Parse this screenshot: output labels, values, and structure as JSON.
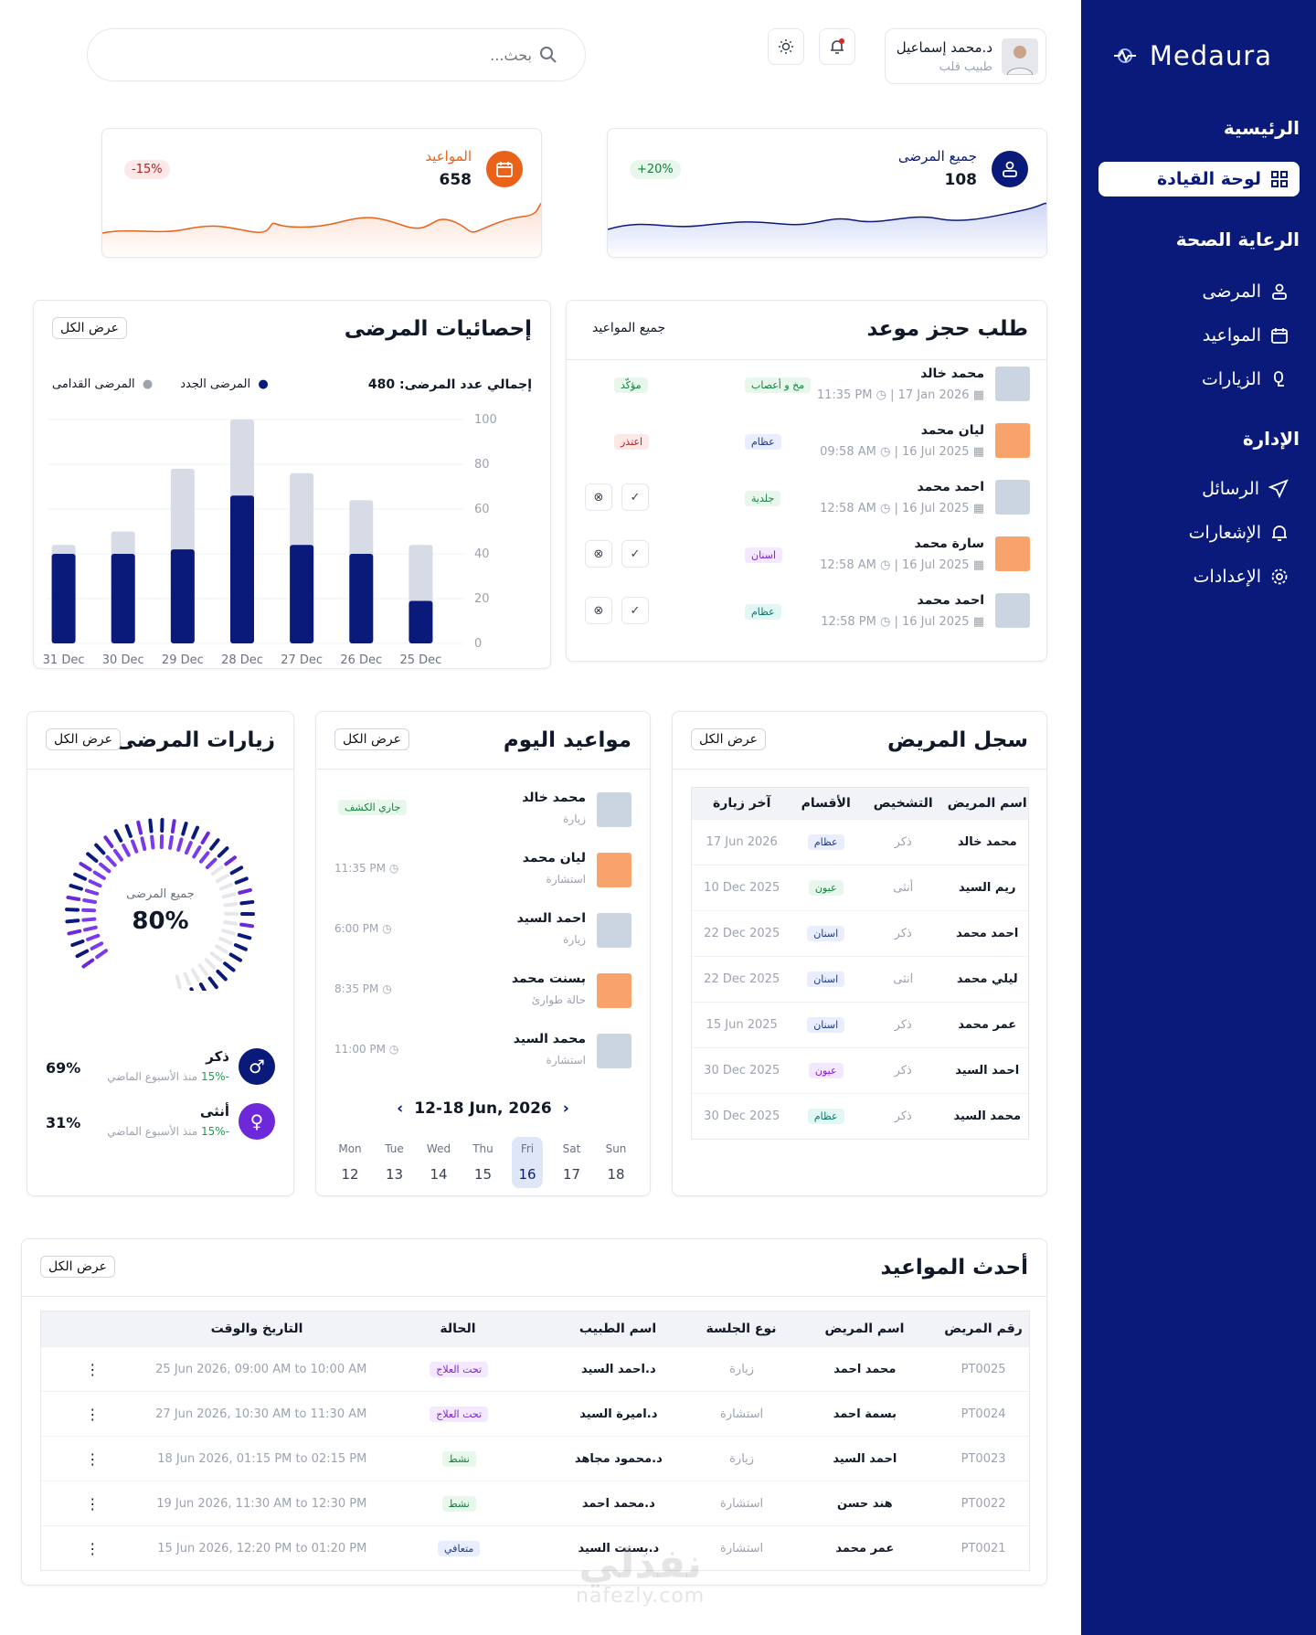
{
  "header": {
    "search_placeholder": "بحث...",
    "user_name": "د.محمد إسماعيل",
    "user_role": "طبيب قلب"
  },
  "sidebar": {
    "brand": "Medaura",
    "sections": [
      {
        "label": "الرئيسية",
        "items": [
          {
            "label": "لوحة القيادة",
            "icon": "dashboard-icon",
            "active": true
          }
        ]
      },
      {
        "label": "الرعاية الصحة",
        "items": [
          {
            "label": "المرضى",
            "icon": "patients-icon"
          },
          {
            "label": "المواعيد",
            "icon": "calendar-icon"
          },
          {
            "label": "الزيارات",
            "icon": "visits-icon"
          }
        ]
      },
      {
        "label": "الإدارة",
        "items": [
          {
            "label": "الرسائل",
            "icon": "send-icon"
          },
          {
            "label": "الإشعارات",
            "icon": "bell-icon"
          },
          {
            "label": "الإعدادات",
            "icon": "gear-icon"
          }
        ]
      }
    ]
  },
  "stats": {
    "patients": {
      "label": "جميع المرضى",
      "value": "108",
      "change": "+20%"
    },
    "appointments": {
      "label": "المواعيد",
      "value": "658",
      "change": "-15%"
    }
  },
  "patient_stats": {
    "title": "إحصائيات المرضى",
    "view_all": "عرض الكل",
    "total_label": "إجمالي عدد المرضى: 480",
    "legend_new": "المرضى الجدد",
    "legend_old": "المرضى القدامى"
  },
  "chart_data": {
    "type": "bar",
    "categories": [
      "31 Dec",
      "30 Dec",
      "29 Dec",
      "28 Dec",
      "27 Dec",
      "26 Dec",
      "25 Dec"
    ],
    "series": [
      {
        "name": "المرضى الجدد",
        "values": [
          40,
          40,
          42,
          66,
          44,
          40,
          19
        ],
        "color": "#0a1a7a"
      },
      {
        "name": "المرضى القدامى",
        "values": [
          44,
          50,
          78,
          100,
          76,
          64,
          44
        ],
        "color": "#d6dbe6"
      }
    ],
    "ylim": [
      0,
      100
    ],
    "yticks": [
      0,
      20,
      40,
      60,
      80,
      100
    ]
  },
  "booking": {
    "title": "طلب حجز موعد",
    "filter": "جميع المواعيد",
    "rows": [
      {
        "name": "محمد خالد",
        "date": "17 Jan 2026",
        "time": "11:35 PM",
        "dept": "مخ و أعصاب",
        "status": "مؤكّد",
        "status_kind": "green",
        "dept_kind": "green",
        "actions": false
      },
      {
        "name": "ليان محمد",
        "date": "16 Jul 2025",
        "time": "09:58 AM",
        "dept": "عظام",
        "status": "اعتذر",
        "status_kind": "red",
        "dept_kind": "blue",
        "actions": false
      },
      {
        "name": "احمد محمد",
        "date": "16 Jul 2025",
        "time": "12:58 AM",
        "dept": "جلدية",
        "status": "",
        "status_kind": "",
        "dept_kind": "green",
        "actions": true
      },
      {
        "name": "سارة محمد",
        "date": "16 Jul 2025",
        "time": "12:58 AM",
        "dept": "اسنان",
        "status": "",
        "status_kind": "",
        "dept_kind": "purple",
        "actions": true
      },
      {
        "name": "احمد محمد",
        "date": "16 Jul 2025",
        "time": "12:58 PM",
        "dept": "عظام",
        "status": "",
        "status_kind": "",
        "dept_kind": "teal",
        "actions": true
      }
    ]
  },
  "records": {
    "title": "سجل المريض",
    "view_all": "عرض الكل",
    "headers": [
      "اسم المريض",
      "التشخيص",
      "الأقسام",
      "آخر زيارة"
    ],
    "rows": [
      {
        "name": "محمد خالد",
        "gender": "ذكر",
        "dept": "عظام",
        "dept_kind": "blue",
        "last": "17 Jun 2026"
      },
      {
        "name": "ريم السيد",
        "gender": "أنثى",
        "dept": "عيون",
        "dept_kind": "green",
        "last": "10 Dec 2025"
      },
      {
        "name": "احمد محمد",
        "gender": "ذكر",
        "dept": "اسنان",
        "dept_kind": "blue",
        "last": "22 Dec 2025"
      },
      {
        "name": "ليلي محمد",
        "gender": "انثى",
        "dept": "اسنان",
        "dept_kind": "blue",
        "last": "22 Dec 2025"
      },
      {
        "name": "عمر محمد",
        "gender": "ذكر",
        "dept": "اسنان",
        "dept_kind": "blue",
        "last": "15 Jun 2025"
      },
      {
        "name": "احمد  السيد",
        "gender": "ذكر",
        "dept": "عيون",
        "dept_kind": "purple",
        "last": "30 Dec 2025"
      },
      {
        "name": "محمد  السيد",
        "gender": "ذكر",
        "dept": "عظام",
        "dept_kind": "teal",
        "last": "30 Dec 2025"
      }
    ]
  },
  "today": {
    "title": "مواعيد اليوم",
    "view_all": "عرض الكل",
    "rows": [
      {
        "name": "محمد خالد",
        "type": "زيارة",
        "right": "جاري الكشف",
        "is_badge": true
      },
      {
        "name": "ليان محمد",
        "type": "استشارة",
        "right": "11:35 PM",
        "is_badge": false
      },
      {
        "name": "احمد السيد",
        "type": "زيارة",
        "right": "6:00 PM",
        "is_badge": false
      },
      {
        "name": "بسنت محمد",
        "type": "حالة طوارئ",
        "right": "8:35 PM",
        "is_badge": false
      },
      {
        "name": "محمد السيد",
        "type": "استشارة",
        "right": "11:00 PM",
        "is_badge": false
      }
    ],
    "week_range": "12-18 Jun, 2026",
    "days": [
      {
        "d": "Mon",
        "n": "12"
      },
      {
        "d": "Tue",
        "n": "13"
      },
      {
        "d": "Wed",
        "n": "14"
      },
      {
        "d": "Thu",
        "n": "15"
      },
      {
        "d": "Fri",
        "n": "16",
        "active": true
      },
      {
        "d": "Sat",
        "n": "17"
      },
      {
        "d": "Sun",
        "n": "18"
      }
    ]
  },
  "visits": {
    "title": "زيارات المرضى",
    "view_all": "عرض الكل",
    "gauge_label": "جميع المرضى",
    "gauge_value": "80%",
    "gauge_fraction": 0.8,
    "male": {
      "label": "ذكر",
      "change": "-15%",
      "note": "منذ الأسبوع الماضي",
      "pct": "69%"
    },
    "female": {
      "label": "أنثى",
      "change": "-15%",
      "note": "منذ الأسبوع الماضي",
      "pct": "31%"
    }
  },
  "latest": {
    "title": "أحدث المواعيد",
    "view_all": "عرض الكل",
    "headers": [
      "رقم المريض",
      "اسم المريض",
      "نوع الجلسة",
      "اسم الطبيب",
      "الحالة",
      "التاريخ والوقت"
    ],
    "rows": [
      {
        "id": "PT0025",
        "name": "محمد احمد",
        "type": "زيارة",
        "doctor": "د.احمد السيد",
        "status": "تحت العلاج",
        "kind": "purple",
        "dt": "25 Jun 2026, 09:00 AM to 10:00 AM"
      },
      {
        "id": "PT0024",
        "name": "بسمة احمد",
        "type": "استشارة",
        "doctor": "د.اميرة السيد",
        "status": "تحت العلاج",
        "kind": "purple",
        "dt": "27 Jun 2026, 10:30 AM to 11:30 AM"
      },
      {
        "id": "PT0023",
        "name": "احمد السيد",
        "type": "زيارة",
        "doctor": "د.محمود مجاهد",
        "status": "نشط",
        "kind": "green",
        "dt": "18 Jun 2026, 01:15 PM to 02:15 PM"
      },
      {
        "id": "PT0022",
        "name": "هند حسن",
        "type": "استشارة",
        "doctor": "د.محمد احمد",
        "status": "نشط",
        "kind": "green",
        "dt": "19 Jun 2026, 11:30 AM to 12:30 PM"
      },
      {
        "id": "PT0021",
        "name": "عمر محمد",
        "type": "استشارة",
        "doctor": "د.بسنت السيد",
        "status": "متعافي",
        "kind": "blue",
        "dt": "15 Jun 2026, 12:20 PM to 01:20 PM"
      }
    ]
  },
  "watermark": {
    "brand": "نفذلي",
    "url": "nafezly.com"
  },
  "colors": {
    "primary": "#0a1a7a",
    "orange": "#e8621a",
    "green": "#16a34a",
    "red": "#dc2626",
    "purple": "#6d28d9"
  }
}
